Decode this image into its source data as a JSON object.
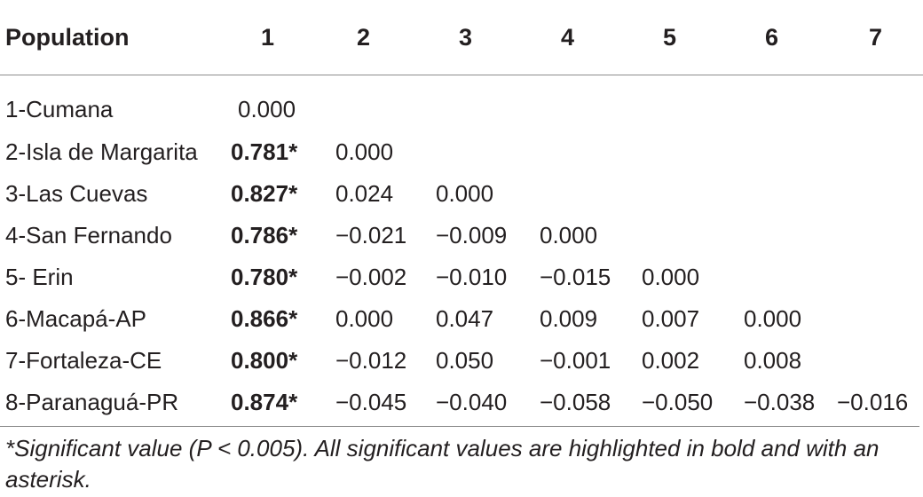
{
  "table": {
    "headers": [
      "Population",
      "1",
      "2",
      "3",
      "4",
      "5",
      "6",
      "7"
    ],
    "rows": [
      {
        "population": "1-Cumana",
        "cells": [
          {
            "text": "0.000",
            "bold": false
          }
        ]
      },
      {
        "population": "2-Isla de Margarita",
        "cells": [
          {
            "text": "0.781*",
            "bold": true
          },
          {
            "text": "0.000",
            "bold": false
          }
        ]
      },
      {
        "population": "3-Las Cuevas",
        "cells": [
          {
            "text": "0.827*",
            "bold": true
          },
          {
            "text": "0.024",
            "bold": false
          },
          {
            "text": "0.000",
            "bold": false
          }
        ]
      },
      {
        "population": "4-San Fernando",
        "cells": [
          {
            "text": "0.786*",
            "bold": true
          },
          {
            "text": "−0.021",
            "bold": false
          },
          {
            "text": "−0.009",
            "bold": false
          },
          {
            "text": "0.000",
            "bold": false
          }
        ]
      },
      {
        "population": "5- Erin",
        "cells": [
          {
            "text": "0.780*",
            "bold": true
          },
          {
            "text": "−0.002",
            "bold": false
          },
          {
            "text": "−0.010",
            "bold": false
          },
          {
            "text": "−0.015",
            "bold": false
          },
          {
            "text": "0.000",
            "bold": false
          }
        ]
      },
      {
        "population": "6-Macapá-AP",
        "cells": [
          {
            "text": "0.866*",
            "bold": true
          },
          {
            "text": "0.000",
            "bold": false
          },
          {
            "text": "0.047",
            "bold": false
          },
          {
            "text": "0.009",
            "bold": false
          },
          {
            "text": "0.007",
            "bold": false
          },
          {
            "text": "0.000",
            "bold": false
          }
        ]
      },
      {
        "population": "7-Fortaleza-CE",
        "cells": [
          {
            "text": "0.800*",
            "bold": true
          },
          {
            "text": "−0.012",
            "bold": false
          },
          {
            "text": "0.050",
            "bold": false
          },
          {
            "text": "−0.001",
            "bold": false
          },
          {
            "text": "0.002",
            "bold": false
          },
          {
            "text": "0.008",
            "bold": false
          }
        ]
      },
      {
        "population": "8-Paranaguá-PR",
        "cells": [
          {
            "text": "0.874*",
            "bold": true
          },
          {
            "text": "−0.045",
            "bold": false
          },
          {
            "text": "−0.040",
            "bold": false
          },
          {
            "text": "−0.058",
            "bold": false
          },
          {
            "text": "−0.050",
            "bold": false
          },
          {
            "text": "−0.038",
            "bold": false
          },
          {
            "text": "−0.016",
            "bold": false
          }
        ]
      }
    ]
  },
  "footnote": "*Significant value (P < 0.005). All significant values are highlighted in bold and with an asterisk."
}
